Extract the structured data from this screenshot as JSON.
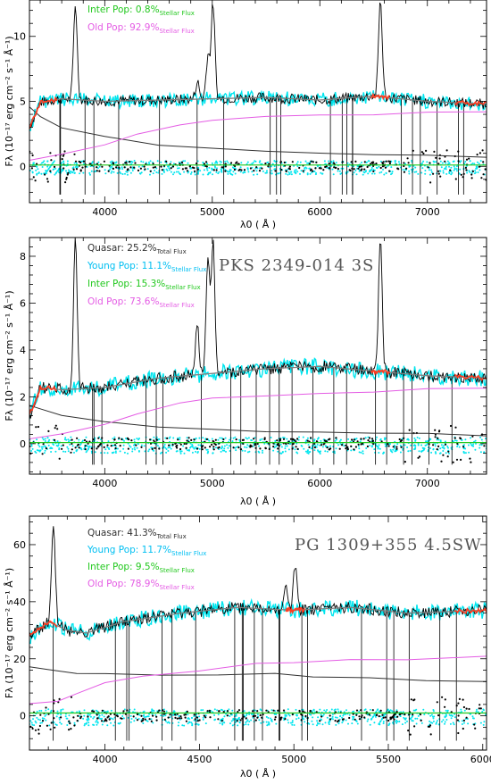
{
  "colors": {
    "observed": "#000000",
    "model": "#808080",
    "young_residual": "#00e5ee",
    "fit": "#ff3b1f",
    "quasar": "#303030",
    "inter": "#22c81e",
    "old": "#e45ce4",
    "young_label": "#00bff2",
    "points": "#000000"
  },
  "chart_data": [
    {
      "type": "line",
      "title": "",
      "xlabel": "λ0 ( Å )",
      "ylabel": "Fλ (10⁻¹⁷ erg cm⁻² s⁻¹ Å⁻¹)",
      "xlim": [
        3300,
        7550
      ],
      "ylim": [
        -2.8,
        12.8
      ],
      "xticks": [
        4000,
        5000,
        6000,
        7000
      ],
      "yticks": [
        0,
        5,
        10
      ],
      "legend": [
        {
          "key": "inter",
          "text": "Inter Pop: 0.8%",
          "sub": "Stellar Flux"
        },
        {
          "key": "old",
          "text": "Old Pop: 92.9%",
          "sub": "Stellar Flux"
        }
      ],
      "series": [
        {
          "key": "quasar",
          "x": [
            3300,
            3400,
            3600,
            4000,
            4500,
            5000,
            5500,
            6000,
            6500,
            7000,
            7550
          ],
          "y": [
            4.5,
            3.9,
            2.9,
            2.3,
            1.7,
            1.4,
            1.2,
            1.05,
            0.95,
            0.85,
            0.75
          ]
        },
        {
          "key": "old",
          "x": [
            3300,
            3600,
            4000,
            4300,
            4700,
            5000,
            5500,
            6000,
            6500,
            7000,
            7550
          ],
          "y": [
            0.5,
            0.9,
            1.7,
            2.5,
            3.2,
            3.5,
            3.8,
            3.9,
            4.0,
            4.1,
            4.2
          ]
        },
        {
          "key": "model",
          "x": [
            3300,
            3400,
            3600,
            4000,
            4500,
            5000,
            5500,
            6000,
            6500,
            7000,
            7550
          ],
          "y": [
            3.0,
            4.9,
            5.2,
            5.0,
            5.1,
            5.2,
            5.3,
            5.1,
            5.4,
            5.0,
            4.8
          ]
        },
        {
          "key": "inter",
          "x": [
            3300,
            7550
          ],
          "y": [
            0.1,
            0.1
          ]
        }
      ],
      "emission_lines": [
        3727,
        4861,
        4959,
        5007,
        6563
      ],
      "line_peaks": [
        12.5,
        6.5,
        8.5,
        12.5,
        12.8
      ]
    },
    {
      "type": "line",
      "title": "PKS 2349-014 3S",
      "xlabel": "λ0 ( Å )",
      "ylabel": "Fλ (10⁻¹⁷ erg cm⁻² s⁻¹ Å⁻¹)",
      "xlim": [
        3300,
        7550
      ],
      "ylim": [
        -1.3,
        8.8
      ],
      "xticks": [
        4000,
        5000,
        6000,
        7000
      ],
      "yticks": [
        0,
        2,
        4,
        6,
        8
      ],
      "legend": [
        {
          "key": "quasar",
          "text": "Quasar: 25.2%",
          "sub": "Total Flux"
        },
        {
          "key": "young_label",
          "text": "Young Pop: 11.1%",
          "sub": "Stellar Flux"
        },
        {
          "key": "inter",
          "text": "Inter Pop: 15.3%",
          "sub": "Stellar Flux"
        },
        {
          "key": "old",
          "text": "Old Pop: 73.6%",
          "sub": "Stellar Flux"
        }
      ],
      "series": [
        {
          "key": "quasar",
          "x": [
            3300,
            3400,
            3600,
            4000,
            4500,
            5000,
            5500,
            6000,
            6500,
            7000,
            7550
          ],
          "y": [
            1.6,
            1.5,
            1.2,
            0.9,
            0.7,
            0.6,
            0.55,
            0.5,
            0.45,
            0.4,
            0.35
          ]
        },
        {
          "key": "old",
          "x": [
            3300,
            3600,
            4000,
            4300,
            4700,
            5000,
            5500,
            6000,
            6500,
            7000,
            7550
          ],
          "y": [
            0.2,
            0.4,
            0.8,
            1.3,
            1.7,
            1.9,
            2.0,
            2.1,
            2.2,
            2.3,
            2.4
          ]
        },
        {
          "key": "model",
          "x": [
            3300,
            3400,
            3600,
            4000,
            4500,
            5000,
            5500,
            6000,
            6500,
            7000,
            7550
          ],
          "y": [
            1.2,
            2.4,
            2.3,
            2.4,
            2.8,
            3.0,
            3.2,
            3.3,
            3.1,
            2.9,
            2.8
          ]
        },
        {
          "key": "inter",
          "x": [
            3300,
            7550
          ],
          "y": [
            0.05,
            0.05
          ]
        }
      ],
      "emission_lines": [
        3727,
        4861,
        4959,
        5007,
        6563
      ],
      "line_peaks": [
        8.6,
        5.0,
        7.8,
        8.6,
        8.8
      ]
    },
    {
      "type": "line",
      "title": "PG 1309+355 4.5SW",
      "xlabel": "λ0 ( Å )",
      "ylabel": "Fλ (10⁻¹⁷ erg cm⁻² s⁻¹ Å⁻¹)",
      "xlim": [
        3600,
        6020
      ],
      "ylim": [
        -12,
        70
      ],
      "xticks": [
        4000,
        4500,
        5000,
        5500,
        6000
      ],
      "yticks": [
        0,
        20,
        40,
        60
      ],
      "legend": [
        {
          "key": "quasar",
          "text": "Quasar: 41.3%",
          "sub": "Total Flux"
        },
        {
          "key": "young_label",
          "text": "Young Pop: 11.7%",
          "sub": "Stellar Flux"
        },
        {
          "key": "inter",
          "text": "Inter Pop: 9.5%",
          "sub": "Stellar Flux"
        },
        {
          "key": "old",
          "text": "Old Pop: 78.9%",
          "sub": "Stellar Flux"
        }
      ],
      "series": [
        {
          "key": "quasar",
          "x": [
            3600,
            3700,
            3850,
            4000,
            4300,
            4600,
            4900,
            5100,
            5400,
            5700,
            6020
          ],
          "y": [
            17,
            16,
            15,
            15,
            14.5,
            14,
            14.5,
            13.5,
            13,
            12.5,
            12
          ]
        },
        {
          "key": "old",
          "x": [
            3600,
            3750,
            3850,
            4000,
            4200,
            4500,
            4800,
            5000,
            5300,
            5600,
            6020
          ],
          "y": [
            4,
            5,
            8,
            12,
            14,
            16,
            18,
            19,
            19.5,
            20,
            20.5
          ]
        },
        {
          "key": "model",
          "x": [
            3600,
            3700,
            3800,
            3900,
            4100,
            4400,
            4700,
            5000,
            5300,
            5600,
            6020
          ],
          "y": [
            28,
            33,
            30,
            29,
            33,
            36,
            38,
            37,
            38,
            36,
            37
          ]
        },
        {
          "key": "inter",
          "x": [
            3600,
            6020
          ],
          "y": [
            1,
            1
          ]
        }
      ],
      "emission_lines": [
        3727,
        4861,
        4959,
        5007
      ],
      "line_peaks": [
        68,
        38,
        45,
        52
      ]
    }
  ]
}
